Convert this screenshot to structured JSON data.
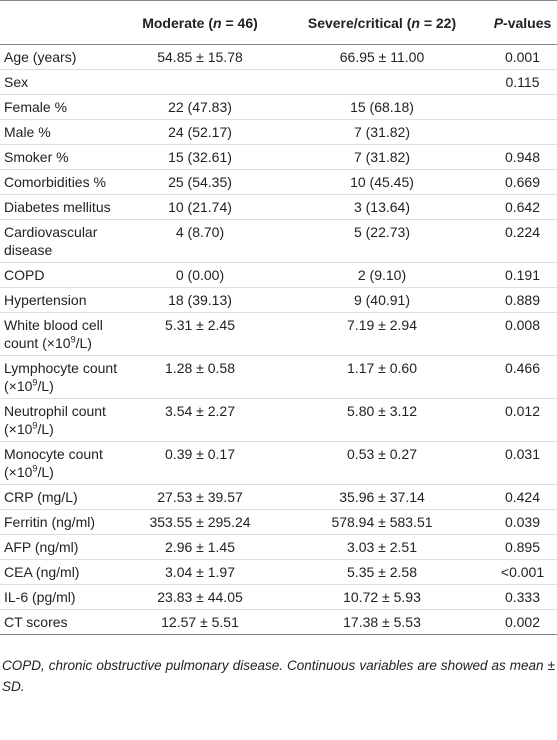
{
  "table": {
    "header": {
      "moderate": {
        "pre": "Moderate (",
        "italic": "n",
        "post": " = 46)"
      },
      "severe": {
        "pre": "Severe/critical (",
        "italic": "n",
        "post": " = 22)"
      },
      "p": {
        "italic": "P",
        "post": "-values"
      }
    },
    "rows": [
      {
        "label": "Age (years)",
        "moderate": "54.85 ± 15.78",
        "severe": "66.95 ± 11.00",
        "p": "0.001"
      },
      {
        "label": "Sex",
        "p": "0.115"
      },
      {
        "label": "Female %",
        "moderate": "22 (47.83)",
        "severe": "15 (68.18)"
      },
      {
        "label": "Male %",
        "moderate": "24 (52.17)",
        "severe": "7 (31.82)"
      },
      {
        "label": "Smoker %",
        "moderate": "15 (32.61)",
        "severe": "7 (31.82)",
        "p": "0.948"
      },
      {
        "label": "Comorbidities %",
        "moderate": "25 (54.35)",
        "severe": "10 (45.45)",
        "p": "0.669"
      },
      {
        "label": "Diabetes mellitus",
        "moderate": "10 (21.74)",
        "severe": "3 (13.64)",
        "p": "0.642"
      },
      {
        "label": "Cardiovascular disease",
        "moderate": "4 (8.70)",
        "severe": "5 (22.73)",
        "p": "0.224"
      },
      {
        "label": "COPD",
        "moderate": "0 (0.00)",
        "severe": "2 (9.10)",
        "p": "0.191"
      },
      {
        "label": "Hypertension",
        "moderate": "18 (39.13)",
        "severe": "9 (40.91)",
        "p": "0.889"
      },
      {
        "label": {
          "pre": "White blood cell count (×10",
          "sup": "9",
          "post": "/L)"
        },
        "moderate": "5.31 ± 2.45",
        "severe": "7.19 ± 2.94",
        "p": "0.008"
      },
      {
        "label": {
          "pre": "Lymphocyte count (×10",
          "sup": "9",
          "post": "/L)"
        },
        "moderate": "1.28 ± 0.58",
        "severe": "1.17 ± 0.60",
        "p": "0.466"
      },
      {
        "label": {
          "pre": "Neutrophil count (×10",
          "sup": "9",
          "post": "/L)"
        },
        "moderate": "3.54 ± 2.27",
        "severe": "5.80 ± 3.12",
        "p": "0.012"
      },
      {
        "label": {
          "pre": "Monocyte count (×10",
          "sup": "9",
          "post": "/L)"
        },
        "moderate": "0.39 ± 0.17",
        "severe": "0.53 ± 0.27",
        "p": "0.031"
      },
      {
        "label": "CRP (mg/L)",
        "moderate": "27.53 ± 39.57",
        "severe": "35.96 ± 37.14",
        "p": "0.424"
      },
      {
        "label": "Ferritin (ng/ml)",
        "moderate": "353.55 ± 295.24",
        "severe": "578.94 ± 583.51",
        "p": "0.039"
      },
      {
        "label": "AFP (ng/ml)",
        "moderate": "2.96 ± 1.45",
        "severe": "3.03 ± 2.51",
        "p": "0.895"
      },
      {
        "label": "CEA (ng/ml)",
        "moderate": "3.04 ± 1.97",
        "severe": "5.35 ± 2.58",
        "p": "<0.001"
      },
      {
        "label": "IL-6 (pg/ml)",
        "moderate": "23.83 ± 44.05",
        "severe": "10.72 ± 5.93",
        "p": "0.333"
      },
      {
        "label": "CT scores",
        "moderate": "12.57 ± 5.51",
        "severe": "17.38 ± 5.53",
        "p": "0.002"
      }
    ],
    "footnote": "COPD, chronic obstructive pulmonary disease. Continuous variables are showed as mean ± SD."
  }
}
